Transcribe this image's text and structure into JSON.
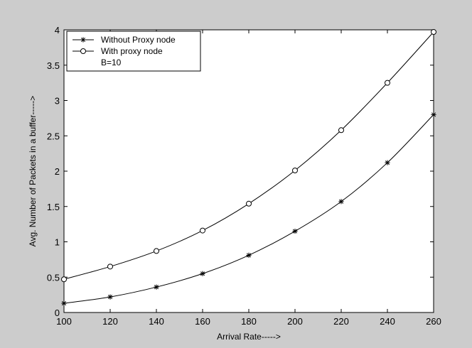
{
  "chart_data": {
    "type": "line",
    "xlabel": "Arrival Rate----->",
    "ylabel": "Avg. Number of Packets in a buffer----->",
    "xlim": [
      100,
      260
    ],
    "ylim": [
      0,
      4
    ],
    "xticks": [
      100,
      120,
      140,
      160,
      180,
      200,
      220,
      240,
      260
    ],
    "yticks": [
      0,
      0.5,
      1,
      1.5,
      2,
      2.5,
      3,
      3.5,
      4
    ],
    "grid": false,
    "legend_position": "top-left",
    "x": [
      100,
      120,
      140,
      160,
      180,
      200,
      220,
      240,
      260
    ],
    "series": [
      {
        "name": "Without Proxy node",
        "marker": "star",
        "color": "#000000",
        "values": [
          0.13,
          0.22,
          0.36,
          0.55,
          0.81,
          1.15,
          1.57,
          2.12,
          2.8
        ]
      },
      {
        "name": "With proxy node",
        "marker": "circle",
        "color": "#000000",
        "values": [
          0.47,
          0.65,
          0.87,
          1.16,
          1.54,
          2.01,
          2.58,
          3.25,
          3.97
        ]
      }
    ],
    "annotations": [
      "B=10"
    ]
  },
  "colors": {
    "figure_background": "#cccccc",
    "axes_background": "#ffffff",
    "line": "#000000"
  }
}
